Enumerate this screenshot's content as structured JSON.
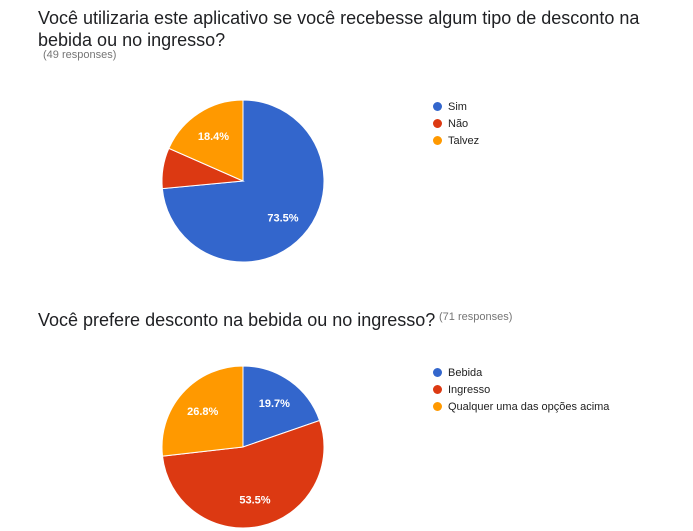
{
  "chart_data": [
    {
      "type": "pie",
      "title": "Você utilizaria este aplicativo se você recebesse algum tipo de desconto na bebida ou no ingresso?",
      "responses": "(49 responses)",
      "categories": [
        "Sim",
        "Não",
        "Talvez"
      ],
      "values": [
        73.5,
        8.1,
        18.4
      ],
      "labels": [
        "73.5%",
        "",
        "18.4%"
      ],
      "colors": [
        "#3366cc",
        "#dc3912",
        "#ff9900"
      ],
      "legend_position": "right"
    },
    {
      "type": "pie",
      "title": "Você prefere desconto na bebida ou no ingresso?",
      "responses": "(71 responses)",
      "categories": [
        "Bebida",
        "Ingresso",
        "Qualquer uma das opções acima"
      ],
      "values": [
        19.7,
        53.5,
        26.8
      ],
      "labels": [
        "19.7%",
        "53.5%",
        "26.8%"
      ],
      "colors": [
        "#3366cc",
        "#dc3912",
        "#ff9900"
      ],
      "legend_position": "right"
    }
  ]
}
